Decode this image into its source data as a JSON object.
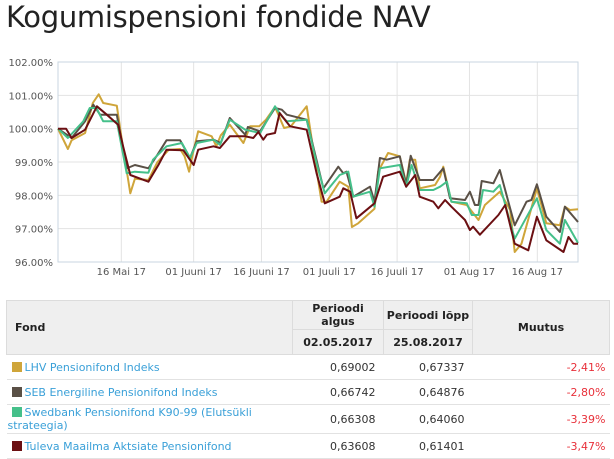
{
  "title": "Kogumispensioni fondide NAV",
  "chart_data": {
    "type": "line",
    "x_unit": "days since 02.05.2017",
    "xlim": [
      0,
      115
    ],
    "ylim": [
      96,
      102
    ],
    "yticks": [
      96,
      97,
      98,
      99,
      100,
      101,
      102
    ],
    "ytick_labels": [
      "96.00%",
      "97.00%",
      "98.00%",
      "99.00%",
      "100.00%",
      "101.00%",
      "102.00%"
    ],
    "xticks": [
      14,
      30,
      45,
      60,
      75,
      91,
      106
    ],
    "xtick_labels": [
      "16 Mai 17",
      "01 Juuni 17",
      "16 Juuni 17",
      "01 Juuli 17",
      "16 Juuli 17",
      "01 Aug 17",
      "16 Aug 17"
    ],
    "grid": true,
    "series": [
      {
        "name": "LHV Pensionifond Indeks",
        "color": "#cfa53a",
        "points": [
          [
            0,
            100
          ],
          [
            2.2,
            99.39
          ],
          [
            3,
            99.65
          ],
          [
            6,
            99.87
          ],
          [
            7.7,
            100.77
          ],
          [
            9,
            101.03
          ],
          [
            10,
            100.77
          ],
          [
            13,
            100.69
          ],
          [
            14,
            99.77
          ],
          [
            16,
            98.06
          ],
          [
            17,
            98.5
          ],
          [
            20,
            98.46
          ],
          [
            22,
            99.0
          ],
          [
            24.5,
            99.37
          ],
          [
            27,
            99.39
          ],
          [
            28,
            99.17
          ],
          [
            29,
            98.71
          ],
          [
            30,
            99.37
          ],
          [
            31,
            99.92
          ],
          [
            34,
            99.77
          ],
          [
            35,
            99.47
          ],
          [
            36,
            99.8
          ],
          [
            38,
            100.12
          ],
          [
            41,
            99.57
          ],
          [
            42.5,
            100.07
          ],
          [
            44.5,
            100.07
          ],
          [
            46,
            100.27
          ],
          [
            48,
            100.65
          ],
          [
            50,
            100.02
          ],
          [
            51.5,
            100.07
          ],
          [
            55,
            100.67
          ],
          [
            56.8,
            99.07
          ],
          [
            58.3,
            97.81
          ],
          [
            59.4,
            97.81
          ],
          [
            62.3,
            98.41
          ],
          [
            64.2,
            98.26
          ],
          [
            65,
            97.05
          ],
          [
            66.4,
            97.16
          ],
          [
            70,
            97.6
          ],
          [
            70.8,
            98.71
          ],
          [
            73,
            99.27
          ],
          [
            75.6,
            99.17
          ],
          [
            77,
            98.36
          ],
          [
            77.8,
            99.07
          ],
          [
            79,
            99.07
          ],
          [
            80,
            98.21
          ],
          [
            83.4,
            98.31
          ],
          [
            84.5,
            98.56
          ],
          [
            85.2,
            98.86
          ],
          [
            87,
            97.81
          ],
          [
            90.4,
            97.71
          ],
          [
            93,
            97.26
          ],
          [
            94.4,
            97.71
          ],
          [
            97.7,
            98.11
          ],
          [
            100,
            97.56
          ],
          [
            101,
            96.3
          ],
          [
            102.5,
            96.55
          ],
          [
            105.9,
            98.21
          ],
          [
            108,
            97.16
          ],
          [
            111,
            97.1
          ],
          [
            112.1,
            97.66
          ],
          [
            113.2,
            97.56
          ],
          [
            115,
            97.58
          ]
        ]
      },
      {
        "name": "SEB Energiline Pensionifond Indeks",
        "color": "#5a5046",
        "points": [
          [
            0,
            100
          ],
          [
            3,
            99.72
          ],
          [
            6,
            100.22
          ],
          [
            7.8,
            100.72
          ],
          [
            9.3,
            100.42
          ],
          [
            13,
            100.42
          ],
          [
            15.2,
            98.81
          ],
          [
            17,
            98.91
          ],
          [
            20,
            98.81
          ],
          [
            22,
            99.22
          ],
          [
            24,
            99.65
          ],
          [
            27,
            99.65
          ],
          [
            29.2,
            99.12
          ],
          [
            30.7,
            99.62
          ],
          [
            34.4,
            99.67
          ],
          [
            36,
            99.57
          ],
          [
            38,
            100.32
          ],
          [
            41.4,
            99.82
          ],
          [
            42,
            100.05
          ],
          [
            44.7,
            99.92
          ],
          [
            48,
            100.62
          ],
          [
            49.5,
            100.57
          ],
          [
            50.6,
            100.42
          ],
          [
            55,
            100.27
          ],
          [
            56.8,
            99.27
          ],
          [
            58.7,
            98.21
          ],
          [
            62,
            98.86
          ],
          [
            63.1,
            98.66
          ],
          [
            63.8,
            98.71
          ],
          [
            65.3,
            97.96
          ],
          [
            69,
            98.26
          ],
          [
            70,
            97.81
          ],
          [
            71.2,
            99.12
          ],
          [
            72.7,
            99.07
          ],
          [
            75.6,
            99.17
          ],
          [
            77,
            98.31
          ],
          [
            78,
            99.19
          ],
          [
            80,
            98.46
          ],
          [
            83,
            98.46
          ],
          [
            85.2,
            98.81
          ],
          [
            86.7,
            97.91
          ],
          [
            90,
            97.86
          ],
          [
            91.1,
            98.11
          ],
          [
            92.2,
            97.71
          ],
          [
            93,
            97.71
          ],
          [
            93.7,
            98.43
          ],
          [
            96.3,
            98.36
          ],
          [
            97.7,
            98.76
          ],
          [
            101,
            97.1
          ],
          [
            103.6,
            97.81
          ],
          [
            104.7,
            97.86
          ],
          [
            105.9,
            98.33
          ],
          [
            108,
            97.36
          ],
          [
            111,
            96.9
          ],
          [
            112.1,
            97.66
          ],
          [
            115,
            97.2
          ]
        ]
      },
      {
        "name": "Swedbank Pensionifond K90-99 (Elutsükli strateegia)",
        "color": "#45c08a",
        "points": [
          [
            0,
            100
          ],
          [
            2.2,
            99.72
          ],
          [
            5.6,
            100.22
          ],
          [
            7,
            100.62
          ],
          [
            8.5,
            100.62
          ],
          [
            10,
            100.22
          ],
          [
            13,
            100.22
          ],
          [
            15.2,
            98.66
          ],
          [
            17,
            98.71
          ],
          [
            20,
            98.68
          ],
          [
            21,
            99.07
          ],
          [
            24,
            99.47
          ],
          [
            27.4,
            99.57
          ],
          [
            29.2,
            99.12
          ],
          [
            30.7,
            99.57
          ],
          [
            34.4,
            99.67
          ],
          [
            35.8,
            99.52
          ],
          [
            38,
            100.27
          ],
          [
            41.4,
            99.97
          ],
          [
            44.7,
            99.87
          ],
          [
            48,
            100.67
          ],
          [
            49.5,
            100.37
          ],
          [
            50.6,
            100.22
          ],
          [
            55,
            100.27
          ],
          [
            57.2,
            98.96
          ],
          [
            59,
            98.06
          ],
          [
            62.3,
            98.61
          ],
          [
            64.2,
            98.71
          ],
          [
            65.3,
            97.96
          ],
          [
            69,
            98.11
          ],
          [
            70,
            97.66
          ],
          [
            71.2,
            98.81
          ],
          [
            75.6,
            98.91
          ],
          [
            77,
            98.26
          ],
          [
            78.2,
            98.91
          ],
          [
            80,
            98.16
          ],
          [
            83,
            98.16
          ],
          [
            84.5,
            98.26
          ],
          [
            86,
            98.41
          ],
          [
            87,
            97.81
          ],
          [
            90.4,
            97.76
          ],
          [
            91.5,
            97.41
          ],
          [
            93,
            97.41
          ],
          [
            94,
            98.16
          ],
          [
            96.3,
            98.11
          ],
          [
            97.7,
            98.31
          ],
          [
            101,
            96.7
          ],
          [
            105.9,
            97.91
          ],
          [
            108,
            96.96
          ],
          [
            111,
            96.55
          ],
          [
            112.1,
            97.26
          ],
          [
            115,
            96.57
          ]
        ]
      },
      {
        "name": "Tuleva Maailma Aktsiate Pensionifond",
        "color": "#6b0f12",
        "points": [
          [
            0,
            100
          ],
          [
            1.8,
            100
          ],
          [
            3,
            99.72
          ],
          [
            6,
            99.97
          ],
          [
            8.6,
            100.67
          ],
          [
            10.8,
            100.42
          ],
          [
            13.3,
            100.12
          ],
          [
            14.4,
            99.47
          ],
          [
            16,
            98.61
          ],
          [
            20,
            98.41
          ],
          [
            22.2,
            98.91
          ],
          [
            24,
            99.37
          ],
          [
            27.7,
            99.35
          ],
          [
            30,
            98.91
          ],
          [
            31,
            99.37
          ],
          [
            34.4,
            99.47
          ],
          [
            35.8,
            99.42
          ],
          [
            38,
            99.77
          ],
          [
            41.4,
            99.77
          ],
          [
            43.2,
            99.72
          ],
          [
            44.3,
            99.9
          ],
          [
            45.4,
            99.67
          ],
          [
            46.2,
            99.82
          ],
          [
            48,
            99.87
          ],
          [
            49,
            100.47
          ],
          [
            51.3,
            100.07
          ],
          [
            55,
            99.97
          ],
          [
            57.2,
            98.66
          ],
          [
            59,
            97.76
          ],
          [
            62.3,
            97.96
          ],
          [
            63.1,
            98.21
          ],
          [
            64.6,
            98.11
          ],
          [
            66,
            97.31
          ],
          [
            70,
            97.76
          ],
          [
            71.9,
            98.56
          ],
          [
            75.6,
            98.71
          ],
          [
            77,
            98.26
          ],
          [
            79,
            98.61
          ],
          [
            80,
            97.96
          ],
          [
            83,
            97.81
          ],
          [
            84.1,
            97.61
          ],
          [
            85.6,
            97.86
          ],
          [
            87,
            97.66
          ],
          [
            90,
            97.26
          ],
          [
            91.1,
            96.96
          ],
          [
            91.8,
            97.06
          ],
          [
            93.3,
            96.82
          ],
          [
            97.4,
            97.41
          ],
          [
            98.9,
            97.71
          ],
          [
            101,
            96.55
          ],
          [
            104,
            96.35
          ],
          [
            105.9,
            97.36
          ],
          [
            108,
            96.65
          ],
          [
            111.8,
            96.3
          ],
          [
            112.9,
            96.75
          ],
          [
            114,
            96.55
          ],
          [
            115,
            96.55
          ]
        ]
      }
    ]
  },
  "table": {
    "headers": {
      "fund": "Fond",
      "start": "Perioodi algus",
      "end": "Perioodi lõpp",
      "change": "Muutus",
      "start_date": "02.05.2017",
      "end_date": "25.08.2017"
    },
    "rows": [
      {
        "name": "LHV Pensionifond Indeks",
        "color": "#cfa53a",
        "start": "0,69002",
        "end": "0,67337",
        "change": "-2,41%"
      },
      {
        "name": "SEB Energiline Pensionifond Indeks",
        "color": "#5a5046",
        "start": "0,66742",
        "end": "0,64876",
        "change": "-2,80%"
      },
      {
        "name": "Swedbank Pensionifond K90-99 (Elutsükli strateegia)",
        "color": "#45c08a",
        "start": "0,66308",
        "end": "0,64060",
        "change": "-3,39%"
      },
      {
        "name": "Tuleva Maailma Aktsiate Pensionifond",
        "color": "#6b0f12",
        "start": "0,63608",
        "end": "0,61401",
        "change": "-3,47%"
      }
    ]
  }
}
